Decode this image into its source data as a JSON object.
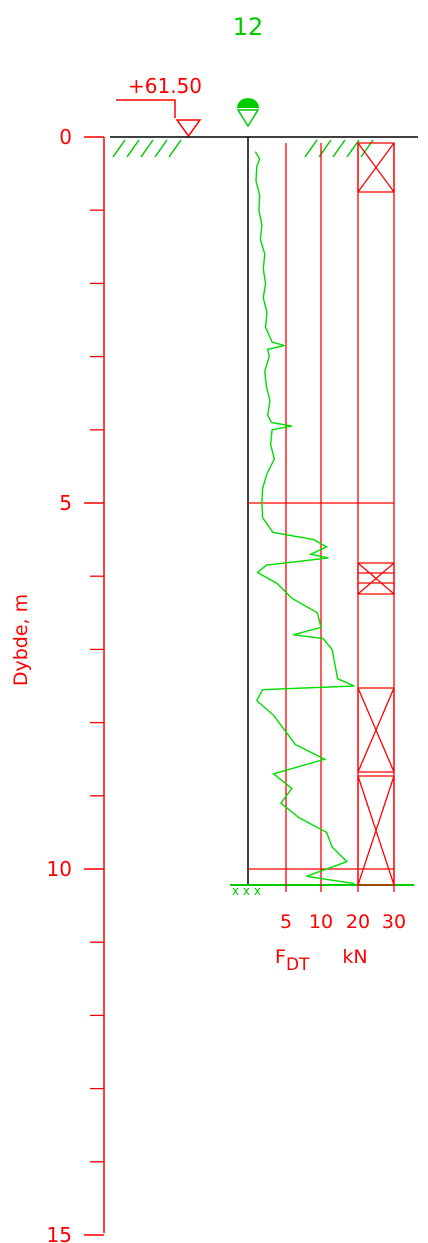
{
  "chart_data": {
    "type": "line",
    "title": "12",
    "elevation_label": "+61.50",
    "ylabel": "Dybde, m",
    "ylim": [
      0,
      15
    ],
    "depth_ticks": [
      "0",
      "5",
      "10",
      "15"
    ],
    "x_ticks": [
      "5",
      "10",
      "20",
      "30"
    ],
    "xlabel_main": "F",
    "xlabel_sub": "DT",
    "xlabel_unit": "kN",
    "colors": {
      "axis": "#ff0000",
      "curve": "#00dd00",
      "title": "#00cc00",
      "ground": "#000000"
    },
    "series": [
      {
        "values_kN": [
          [
            0.2,
            1.0
          ],
          [
            0.3,
            1.6
          ],
          [
            0.4,
            1.2
          ],
          [
            0.6,
            1.1
          ],
          [
            0.8,
            1.6
          ],
          [
            1.0,
            1.5
          ],
          [
            1.2,
            1.9
          ],
          [
            1.4,
            1.7
          ],
          [
            1.6,
            2.3
          ],
          [
            1.8,
            2.1
          ],
          [
            2.0,
            2.4
          ],
          [
            2.2,
            2.1
          ],
          [
            2.4,
            2.6
          ],
          [
            2.6,
            2.4
          ],
          [
            2.8,
            3.3
          ],
          [
            2.85,
            5.0
          ],
          [
            2.9,
            2.7
          ],
          [
            3.0,
            2.9
          ],
          [
            3.2,
            2.3
          ],
          [
            3.4,
            2.5
          ],
          [
            3.6,
            3.0
          ],
          [
            3.8,
            2.7
          ],
          [
            3.9,
            3.2
          ],
          [
            3.95,
            6.0
          ],
          [
            4.0,
            3.3
          ],
          [
            4.2,
            3.1
          ],
          [
            4.4,
            3.6
          ],
          [
            4.6,
            2.6
          ],
          [
            4.8,
            2.0
          ],
          [
            5.0,
            1.9
          ],
          [
            5.2,
            2.0
          ],
          [
            5.4,
            3.4
          ],
          [
            5.5,
            9.0
          ],
          [
            5.6,
            11.5
          ],
          [
            5.7,
            8.6
          ],
          [
            5.75,
            12.0
          ],
          [
            5.85,
            2.5
          ],
          [
            5.95,
            1.3
          ],
          [
            6.1,
            4.0
          ],
          [
            6.3,
            6.0
          ],
          [
            6.5,
            9.5
          ],
          [
            6.7,
            10.0
          ],
          [
            6.8,
            6.2
          ],
          [
            6.85,
            10.5
          ],
          [
            7.0,
            13.0
          ],
          [
            7.4,
            14.5
          ],
          [
            7.5,
            19.0
          ],
          [
            7.55,
            2.0
          ],
          [
            7.7,
            1.2
          ],
          [
            7.9,
            3.5
          ],
          [
            8.1,
            5.0
          ],
          [
            8.3,
            6.5
          ],
          [
            8.5,
            11.0
          ],
          [
            8.7,
            3.5
          ],
          [
            8.9,
            6.0
          ],
          [
            9.1,
            4.5
          ],
          [
            9.3,
            7.0
          ],
          [
            9.5,
            11.5
          ],
          [
            9.7,
            13.0
          ],
          [
            9.9,
            17.0
          ],
          [
            10.1,
            8.0
          ],
          [
            10.2,
            19.0
          ]
        ]
      }
    ]
  }
}
